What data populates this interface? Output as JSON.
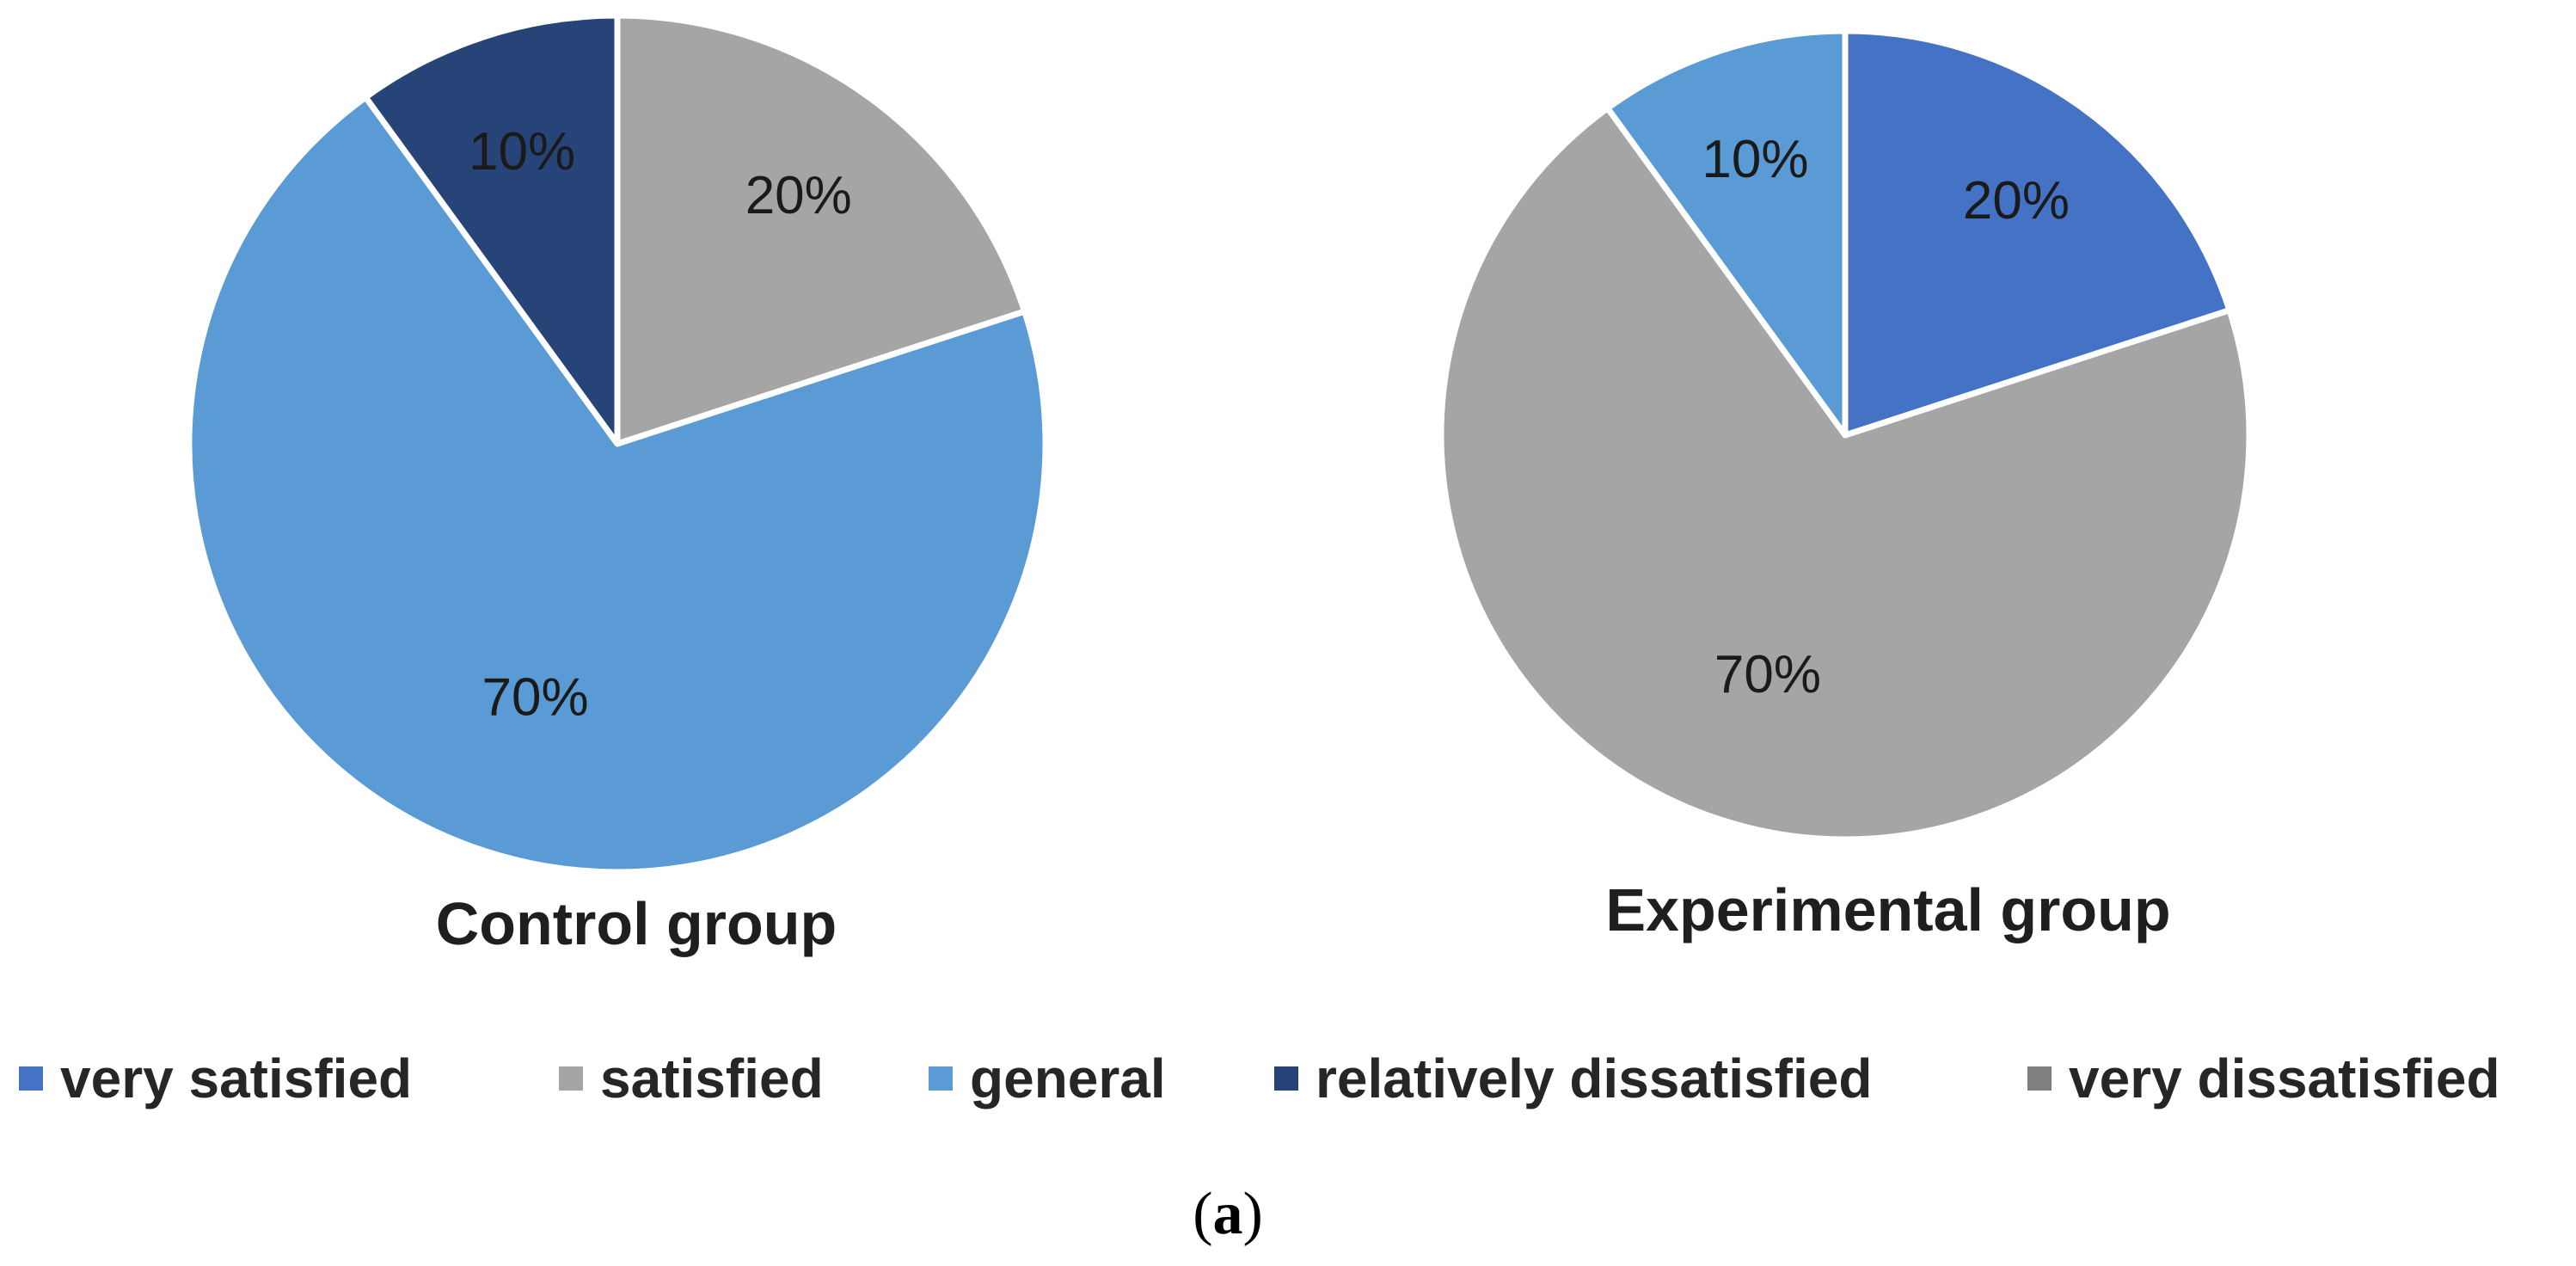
{
  "colors": {
    "very_satisfied": "#4472C4",
    "satisfied": "#A5A5A5",
    "general": "#5B9BD5",
    "relatively_dissatisfied": "#264478",
    "very_dissatisfied": "#7F7F7F"
  },
  "chart_data": [
    {
      "type": "pie",
      "title": "Control group",
      "start": "12 o'clock, clockwise",
      "slices": [
        {
          "category": "satisfied",
          "value": 20,
          "label": "20%"
        },
        {
          "category": "general",
          "value": 70,
          "label": "70%"
        },
        {
          "category": "relatively dissatisfied",
          "value": 10,
          "label": "10%"
        }
      ]
    },
    {
      "type": "pie",
      "title": "Experimental group",
      "start": "12 o'clock, clockwise",
      "slices": [
        {
          "category": "very satisfied",
          "value": 20,
          "label": "20%"
        },
        {
          "category": "satisfied",
          "value": 70,
          "label": "70%"
        },
        {
          "category": "general",
          "value": 10,
          "label": "10%"
        }
      ]
    }
  ],
  "legend": {
    "placement": "bottom",
    "items": [
      {
        "key": "very_satisfied",
        "label": "very satisfied"
      },
      {
        "key": "satisfied",
        "label": "satisfied"
      },
      {
        "key": "general",
        "label": "general"
      },
      {
        "key": "relatively_dissatisfied",
        "label": "relatively dissatisfied"
      },
      {
        "key": "very_dissatisfied",
        "label": "very dissatisfied"
      }
    ]
  },
  "caption": {
    "open": "(",
    "letter": "a",
    "close": ")"
  }
}
